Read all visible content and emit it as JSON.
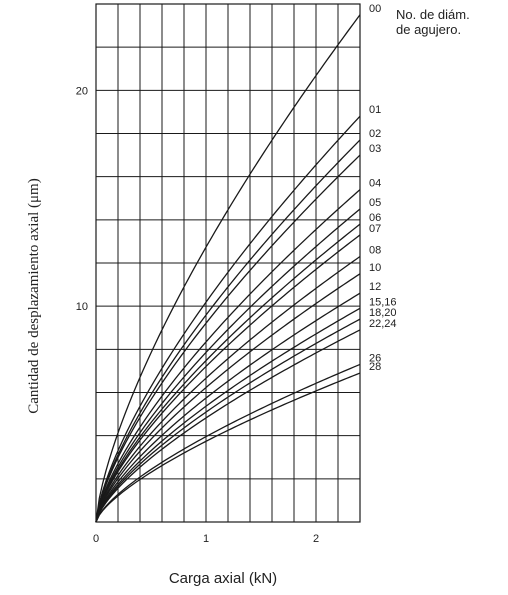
{
  "chart_data": {
    "type": "line",
    "title": "",
    "xlabel": "Carga axial (kN)",
    "ylabel": "Cantidad de desplazamiento axial (μm)",
    "legend_title": [
      "No. de diám.",
      "de agujero."
    ],
    "xlim": [
      0,
      2.4
    ],
    "ylim": [
      0,
      24
    ],
    "x_ticks": [
      {
        "value": 0,
        "label": "0"
      },
      {
        "value": 1,
        "label": "1"
      },
      {
        "value": 2,
        "label": "2"
      }
    ],
    "y_ticks": [
      {
        "value": 10,
        "label": "10"
      },
      {
        "value": 20,
        "label": "20"
      }
    ],
    "grid": true,
    "curve_model": "y = k * x^0.7",
    "series": [
      {
        "name": "00",
        "label_lines": [
          "00"
        ],
        "y_at_2_4": 23.5
      },
      {
        "name": "01",
        "label_lines": [
          "01"
        ],
        "y_at_2_4": 18.8
      },
      {
        "name": "02",
        "label_lines": [
          "02"
        ],
        "y_at_2_4": 17.7
      },
      {
        "name": "03",
        "label_lines": [
          "03"
        ],
        "y_at_2_4": 17.0
      },
      {
        "name": "04",
        "label_lines": [
          "04"
        ],
        "y_at_2_4": 15.4
      },
      {
        "name": "05",
        "label_lines": [
          "05"
        ],
        "y_at_2_4": 14.5
      },
      {
        "name": "06",
        "label_lines": [
          "06"
        ],
        "y_at_2_4": 13.8
      },
      {
        "name": "07",
        "label_lines": [
          "07"
        ],
        "y_at_2_4": 13.3
      },
      {
        "name": "08",
        "label_lines": [
          "08"
        ],
        "y_at_2_4": 12.3
      },
      {
        "name": "10",
        "label_lines": [
          "10"
        ],
        "y_at_2_4": 11.5
      },
      {
        "name": "12",
        "label_lines": [
          "12"
        ],
        "y_at_2_4": 10.6
      },
      {
        "name": "15,16",
        "label_lines": [
          "15,16"
        ],
        "y_at_2_4": 9.9
      },
      {
        "name": "18,20",
        "label_lines": [
          "18,20"
        ],
        "y_at_2_4": 9.4
      },
      {
        "name": "22,24",
        "label_lines": [
          "22,24"
        ],
        "y_at_2_4": 8.9
      },
      {
        "name": "26",
        "label_lines": [
          "26"
        ],
        "y_at_2_4": 7.3
      },
      {
        "name": "28",
        "label_lines": [
          "28"
        ],
        "y_at_2_4": 6.9
      }
    ]
  },
  "colors": {
    "line": "#1a1a1a",
    "grid": "#1a1a1a",
    "text": "#222222"
  }
}
